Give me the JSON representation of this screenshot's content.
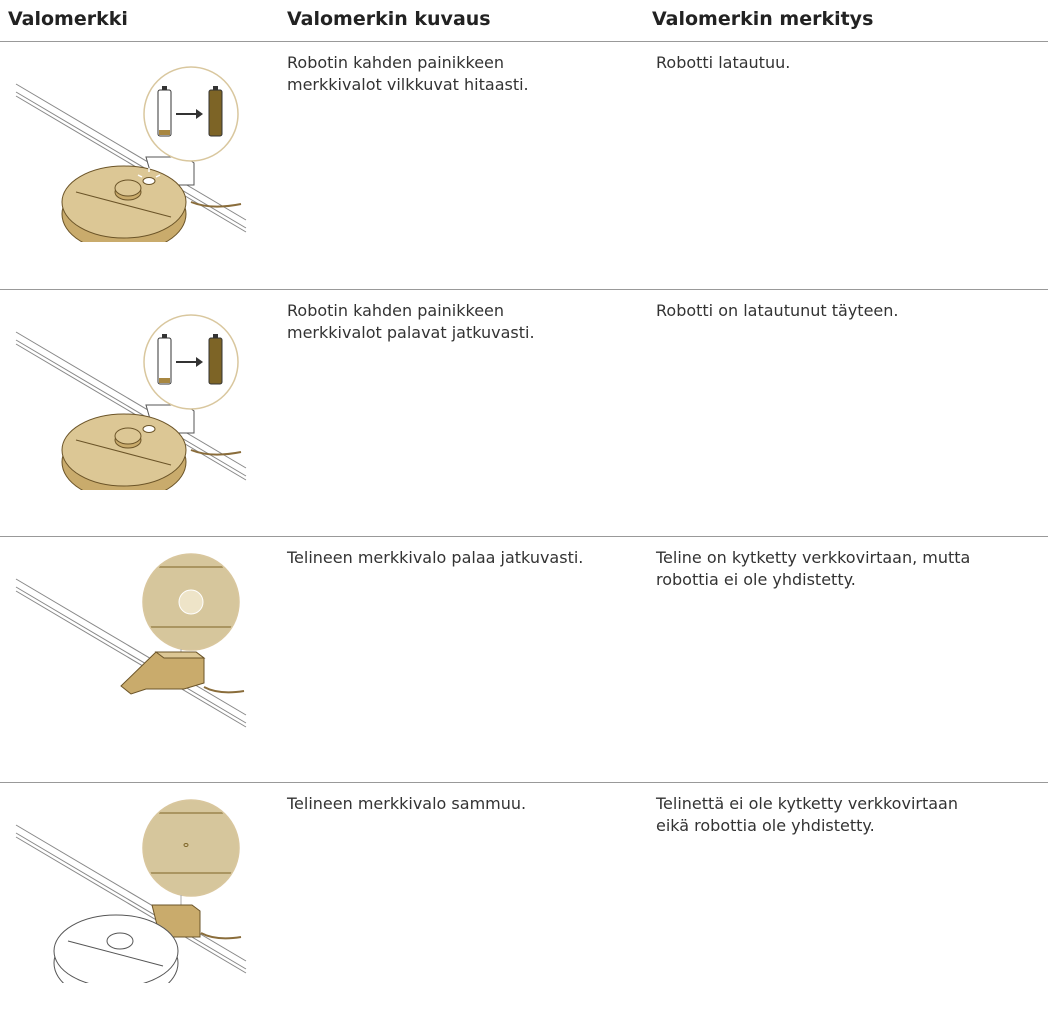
{
  "table": {
    "header": [
      "Valomerkki",
      "Valomerkin kuvaus",
      "Valomerkin merkitys"
    ],
    "rows": [
      {
        "description": [
          "Robotin kahden painikkeen",
          "merkkivalot vilkkuvat hitaasti."
        ],
        "meaning": [
          "Robotti latautuu."
        ]
      },
      {
        "description": [
          "Robotin kahden painikkeen",
          "merkkivalot palavat jatkuvasti."
        ],
        "meaning": [
          "Robotti on latautunut täyteen."
        ]
      },
      {
        "description": [
          "Telineen merkkivalo palaa jatkuvasti."
        ],
        "meaning": [
          "Teline on kytketty verkkovirtaan, mutta",
          "robottia ei ole yhdistetty."
        ]
      },
      {
        "description": [
          "Telineen merkkivalo sammuu."
        ],
        "meaning": [
          "Telinettä ei ole kytketty verkkovirtaan",
          "eikä robottia ole yhdistetty."
        ]
      }
    ]
  }
}
